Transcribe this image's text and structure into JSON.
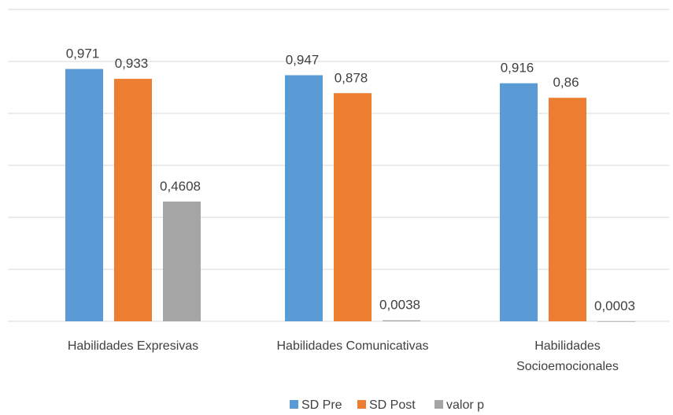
{
  "chart_data": {
    "type": "bar",
    "categories": [
      [
        "Habilidades Expresivas"
      ],
      [
        "Habilidades Comunicativas"
      ],
      [
        "Habilidades",
        "Socioemocionales"
      ]
    ],
    "series": [
      {
        "name": "SD Pre",
        "color": "#5b9bd5",
        "values": [
          0.971,
          0.947,
          0.916
        ],
        "labels": [
          "0,971",
          "0,947",
          "0,916"
        ]
      },
      {
        "name": "SD Post",
        "color": "#ed7d31",
        "values": [
          0.933,
          0.878,
          0.86
        ],
        "labels": [
          "0,933",
          "0,878",
          "0,86"
        ]
      },
      {
        "name": "valor p",
        "color": "#a5a5a5",
        "values": [
          0.4608,
          0.0038,
          0.0003
        ],
        "labels": [
          "0,4608",
          "0,0038",
          "0,0003"
        ]
      }
    ],
    "ylim": [
      0,
      1.2
    ],
    "grid": true,
    "legend_position": "bottom"
  }
}
